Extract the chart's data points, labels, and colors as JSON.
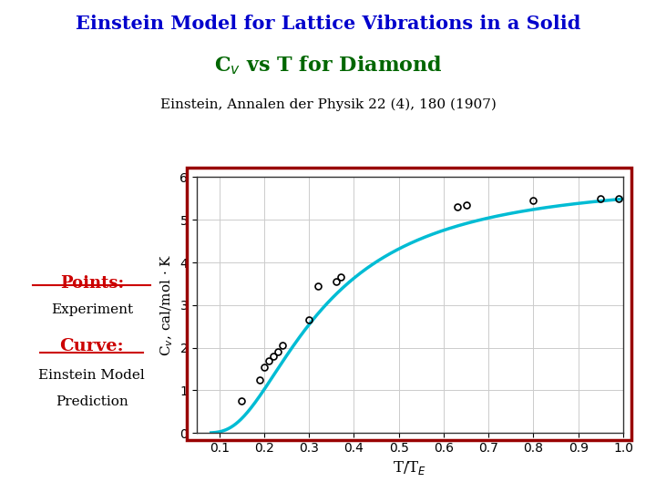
{
  "title1": "Einstein Model for Lattice Vibrations in a Solid",
  "title2": "C$_v$ vs T for Diamond",
  "subtitle": "Einstein, Annalen der Physik 22 (4), 180 (1907)",
  "xlabel": "T/T$_E$",
  "ylabel": "C$_v$, cal/mol · K",
  "title1_color": "#0000cc",
  "title2_color": "#006600",
  "subtitle_color": "#000000",
  "curve_color": "#00bcd4",
  "point_color": "#000000",
  "bg_color": "#ffffff",
  "border_color": "#990000",
  "xlim": [
    0.05,
    1.0
  ],
  "ylim": [
    0,
    6
  ],
  "xticks": [
    0.1,
    0.2,
    0.3,
    0.4,
    0.5,
    0.6,
    0.7,
    0.8,
    0.9,
    1.0
  ],
  "yticks": [
    0,
    1,
    2,
    3,
    4,
    5,
    6
  ],
  "exp_x": [
    0.15,
    0.19,
    0.2,
    0.21,
    0.22,
    0.23,
    0.24,
    0.3,
    0.32,
    0.36,
    0.37,
    0.63,
    0.65,
    0.8,
    0.95,
    0.99
  ],
  "exp_y": [
    0.75,
    1.25,
    1.55,
    1.7,
    1.8,
    1.9,
    2.05,
    2.65,
    3.45,
    3.55,
    3.65,
    5.3,
    5.35,
    5.45,
    5.5,
    5.5
  ],
  "legend_points_label": "Points:",
  "legend_points_sublabel": "Experiment",
  "legend_curve_label": "Curve:",
  "legend_curve_sublabel1": "Einstein Model",
  "legend_curve_sublabel2": "Prediction",
  "legend_label_color": "#cc0000"
}
